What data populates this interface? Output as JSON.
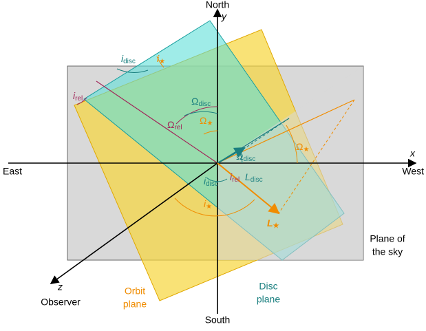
{
  "axes": {
    "north": "North",
    "south": "South",
    "east": "East",
    "west": "West",
    "x": "x",
    "y": "y",
    "z": "z",
    "observer": "Observer"
  },
  "planes": {
    "orbit": [
      "Orbit",
      "plane"
    ],
    "disc": [
      "Disc",
      "plane"
    ],
    "sky": [
      "Plane of",
      "the sky"
    ]
  },
  "labels": [
    {
      "base": "i",
      "sub": "disc"
    },
    {
      "base": "i",
      "sub": "★"
    },
    {
      "base": "i",
      "sub": "rel"
    },
    {
      "base": "Ω",
      "sub": "disc"
    },
    {
      "base": "Ω",
      "sub": "rel"
    },
    {
      "base": "Ω",
      "sub": "★"
    },
    {
      "base": "Ω",
      "sub": "★"
    },
    {
      "base": "Ω",
      "sub": "disc"
    },
    {
      "base": "i",
      "sub": "disc"
    },
    {
      "base": "i",
      "sub": "rel"
    },
    {
      "base": "L",
      "sub": "disc"
    },
    {
      "base": "i",
      "sub": "★"
    },
    {
      "base": "L",
      "sub": "★"
    }
  ]
}
